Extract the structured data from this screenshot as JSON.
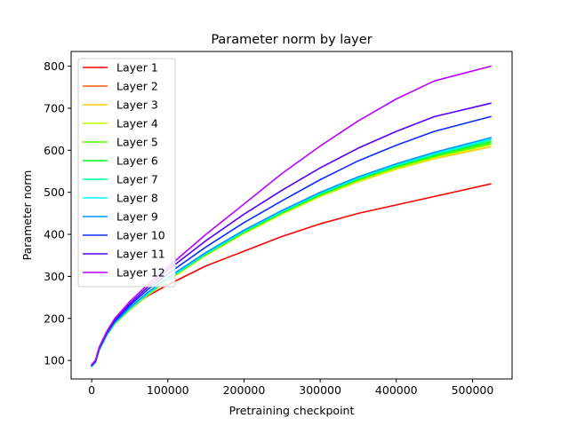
{
  "chart_data": {
    "type": "line",
    "title": "Parameter norm by layer",
    "xlabel": "Pretraining checkpoint",
    "ylabel": "Parameter norm",
    "xlim": [
      -27000,
      552000
    ],
    "ylim": [
      56,
      835
    ],
    "xticks": [
      0,
      100000,
      200000,
      300000,
      400000,
      500000
    ],
    "yticks": [
      100,
      200,
      300,
      400,
      500,
      600,
      700,
      800
    ],
    "grid": false,
    "legend": "top-left",
    "x": [
      0,
      5000,
      10000,
      20000,
      30000,
      50000,
      75000,
      100000,
      150000,
      200000,
      250000,
      300000,
      350000,
      400000,
      450000,
      524000
    ],
    "series": [
      {
        "name": "Layer 1",
        "color": "#ff0000",
        "values": [
          88,
          100,
          130,
          165,
          190,
          225,
          255,
          280,
          325,
          360,
          395,
          425,
          450,
          470,
          490,
          520
        ]
      },
      {
        "name": "Layer 2",
        "color": "#ff5a00",
        "values": [
          86,
          96,
          125,
          162,
          189,
          225,
          262,
          295,
          355,
          410,
          455,
          500,
          535,
          565,
          590,
          630
        ]
      },
      {
        "name": "Layer 3",
        "color": "#ffcc00",
        "values": [
          86,
          95,
          124,
          160,
          186,
          220,
          257,
          290,
          350,
          402,
          448,
          490,
          525,
          555,
          580,
          608
        ]
      },
      {
        "name": "Layer 4",
        "color": "#bbff00",
        "values": [
          86,
          95,
          124,
          160,
          186,
          221,
          258,
          291,
          351,
          403,
          449,
          491,
          527,
          557,
          582,
          613
        ]
      },
      {
        "name": "Layer 5",
        "color": "#55ff00",
        "values": [
          86,
          95,
          125,
          161,
          187,
          222,
          259,
          292,
          352,
          404,
          451,
          493,
          529,
          560,
          585,
          616
        ]
      },
      {
        "name": "Layer 6",
        "color": "#00ff22",
        "values": [
          86,
          96,
          125,
          161,
          188,
          223,
          260,
          293,
          353,
          406,
          452,
          495,
          531,
          562,
          588,
          620
        ]
      },
      {
        "name": "Layer 7",
        "color": "#00ff99",
        "values": [
          86,
          96,
          125,
          161,
          188,
          223,
          260,
          294,
          354,
          407,
          454,
          497,
          533,
          564,
          590,
          624
        ]
      },
      {
        "name": "Layer 8",
        "color": "#00ffff",
        "values": [
          86,
          96,
          126,
          162,
          189,
          224,
          261,
          295,
          355,
          408,
          455,
          498,
          535,
          566,
          592,
          627
        ]
      },
      {
        "name": "Layer 9",
        "color": "#0096ff",
        "values": [
          87,
          97,
          127,
          163,
          190,
          226,
          264,
          297,
          357,
          410,
          457,
          500,
          537,
          568,
          595,
          630
        ]
      },
      {
        "name": "Layer 10",
        "color": "#0a2cff",
        "values": [
          88,
          98,
          129,
          166,
          193,
          231,
          271,
          306,
          370,
          428,
          480,
          530,
          575,
          612,
          645,
          680
        ]
      },
      {
        "name": "Layer 11",
        "color": "#5500ff",
        "values": [
          89,
          99,
          130,
          168,
          196,
          235,
          277,
          315,
          385,
          448,
          505,
          558,
          605,
          645,
          680,
          712
        ]
      },
      {
        "name": "Layer 12",
        "color": "#bb00ff",
        "values": [
          90,
          101,
          132,
          170,
          199,
          240,
          283,
          322,
          400,
          472,
          545,
          610,
          670,
          722,
          765,
          800
        ]
      }
    ]
  }
}
